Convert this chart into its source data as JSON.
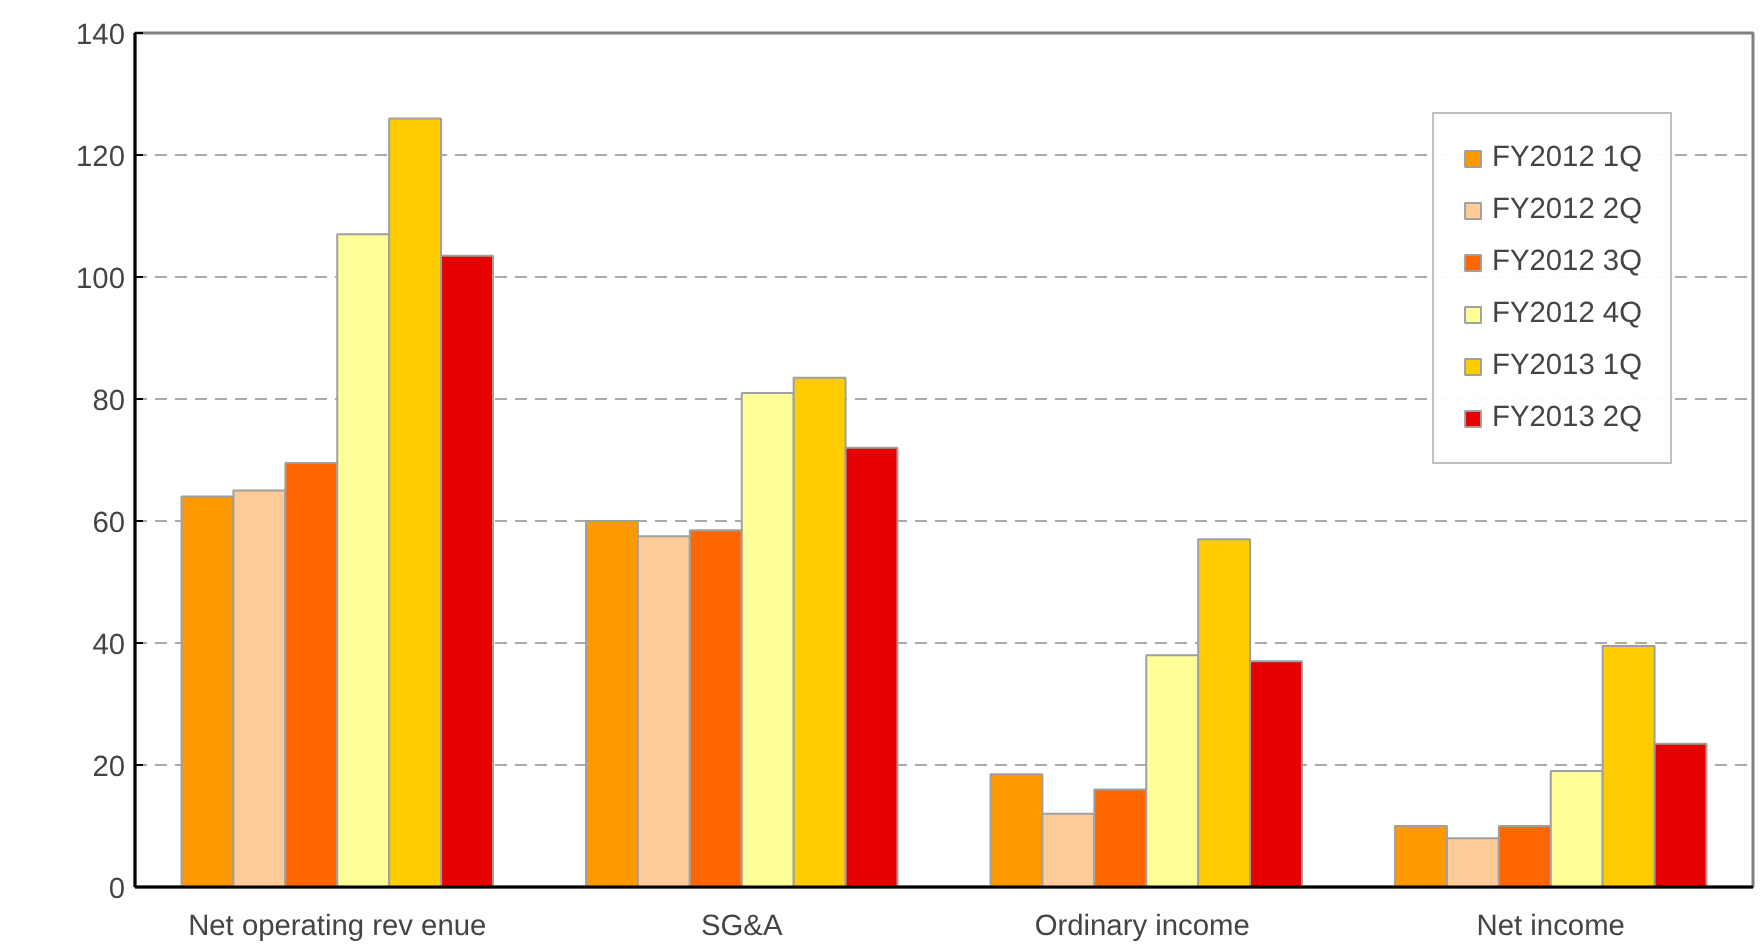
{
  "chart_data": {
    "type": "bar",
    "categories": [
      "Net operating rev enue",
      "SG&A",
      "Ordinary  income",
      "Net income"
    ],
    "series": [
      {
        "name": "FY2012 1Q",
        "color": "#ff9900",
        "values": [
          64,
          60,
          18.5,
          10
        ]
      },
      {
        "name": "FY2012 2Q",
        "color": "#ffcc99",
        "values": [
          65,
          57.5,
          12,
          8
        ]
      },
      {
        "name": "FY2012 3Q",
        "color": "#ff6600",
        "values": [
          69.5,
          58.5,
          16,
          10
        ]
      },
      {
        "name": "FY2012 4Q",
        "color": "#ffff99",
        "values": [
          107,
          81,
          38,
          19
        ]
      },
      {
        "name": "FY2013 1Q",
        "color": "#ffcc00",
        "values": [
          126,
          83.5,
          57,
          39.5
        ]
      },
      {
        "name": "FY2013 2Q",
        "color": "#e60000",
        "values": [
          103.5,
          72,
          37,
          23.5
        ]
      }
    ],
    "ylim": [
      0,
      140
    ],
    "yticks": [
      0,
      20,
      40,
      60,
      80,
      100,
      120,
      140
    ],
    "grid": "y",
    "legend": "top right"
  }
}
